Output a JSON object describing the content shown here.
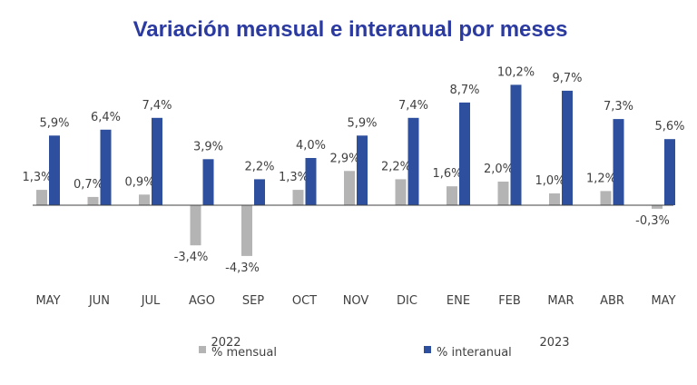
{
  "chart_data": {
    "type": "bar",
    "title": "Variación mensual e interanual por meses",
    "categories": [
      "MAY",
      "JUN",
      "JUL",
      "AGO",
      "SEP",
      "OCT",
      "NOV",
      "DIC",
      "ENE",
      "FEB",
      "MAR",
      "ABR",
      "MAY"
    ],
    "year_labels": [
      "2022",
      "2023"
    ],
    "series": [
      {
        "name": "% mensual",
        "color": "#b4b4b4",
        "values": [
          1.3,
          0.7,
          0.9,
          -3.4,
          -4.3,
          1.3,
          2.9,
          2.2,
          1.6,
          2.0,
          1.0,
          1.2,
          -0.3
        ],
        "labels": [
          "1,3%",
          "0,7%",
          "0,9%",
          "-3,4%",
          "-4,3%",
          "1,3%",
          "2,9%",
          "2,2%",
          "1,6%",
          "2,0%",
          "1,0%",
          "1,2%",
          "-0,3%"
        ]
      },
      {
        "name": "% interanual",
        "color": "#2e4f9e",
        "values": [
          5.9,
          6.4,
          7.4,
          3.9,
          2.2,
          4.0,
          5.9,
          7.4,
          8.7,
          10.2,
          9.7,
          7.3,
          5.6
        ],
        "labels": [
          "5,9%",
          "6,4%",
          "7,4%",
          "3,9%",
          "2,2%",
          "4,0%",
          "5,9%",
          "7,4%",
          "8,7%",
          "10,2%",
          "9,7%",
          "7,3%",
          "5,6%"
        ]
      }
    ],
    "ylim": [
      -5,
      11
    ],
    "grid": false,
    "legend": "bottom"
  }
}
